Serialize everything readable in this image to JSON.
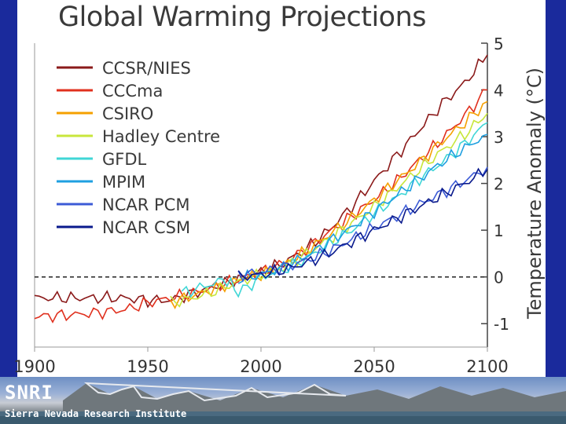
{
  "slide": {
    "title": "Global Warming Projections"
  },
  "banner": {
    "logo": "SNRI",
    "subtitle": "Sierra Nevada Research Institute"
  },
  "chart_data": {
    "type": "line",
    "title": "Global Warming Projections",
    "xlabel": "",
    "ylabel": "Temperature Anomaly (°C)",
    "xlim": [
      1900,
      2100
    ],
    "ylim": [
      -1.5,
      5
    ],
    "x_ticks": [
      1900,
      1950,
      2000,
      2050,
      2100
    ],
    "y_ticks": [
      -1,
      0,
      1,
      2,
      3,
      4,
      5
    ],
    "reference_line": 0,
    "series": [
      {
        "name": "CCSR/NIES",
        "color": "#8b1a1a",
        "points": [
          [
            1900,
            -0.45
          ],
          [
            1920,
            -0.45
          ],
          [
            1940,
            -0.45
          ],
          [
            1950,
            -0.5
          ],
          [
            1960,
            -0.5
          ],
          [
            1970,
            -0.35
          ],
          [
            1980,
            -0.2
          ],
          [
            1990,
            -0.05
          ],
          [
            2000,
            0.1
          ],
          [
            2010,
            0.3
          ],
          [
            2020,
            0.6
          ],
          [
            2030,
            1.0
          ],
          [
            2040,
            1.5
          ],
          [
            2050,
            2.05
          ],
          [
            2060,
            2.6
          ],
          [
            2070,
            3.15
          ],
          [
            2080,
            3.7
          ],
          [
            2090,
            4.15
          ],
          [
            2100,
            4.75
          ]
        ]
      },
      {
        "name": "CCCma",
        "color": "#e0301e",
        "points": [
          [
            1900,
            -0.85
          ],
          [
            1920,
            -0.8
          ],
          [
            1940,
            -0.7
          ],
          [
            1950,
            -0.55
          ],
          [
            1960,
            -0.45
          ],
          [
            1970,
            -0.35
          ],
          [
            1980,
            -0.2
          ],
          [
            1990,
            -0.05
          ],
          [
            2000,
            0.1
          ],
          [
            2010,
            0.3
          ],
          [
            2020,
            0.6
          ],
          [
            2030,
            0.95
          ],
          [
            2040,
            1.3
          ],
          [
            2050,
            1.65
          ],
          [
            2060,
            2.05
          ],
          [
            2070,
            2.5
          ],
          [
            2080,
            2.95
          ],
          [
            2090,
            3.45
          ],
          [
            2100,
            4.0
          ]
        ]
      },
      {
        "name": "CSIRO",
        "color": "#f5a000",
        "points": [
          [
            1960,
            -0.55
          ],
          [
            1970,
            -0.4
          ],
          [
            1980,
            -0.25
          ],
          [
            1990,
            -0.05
          ],
          [
            2000,
            0.05
          ],
          [
            2010,
            0.25
          ],
          [
            2020,
            0.55
          ],
          [
            2030,
            0.9
          ],
          [
            2040,
            1.25
          ],
          [
            2050,
            1.65
          ],
          [
            2060,
            2.05
          ],
          [
            2070,
            2.45
          ],
          [
            2080,
            2.9
          ],
          [
            2090,
            3.3
          ],
          [
            2100,
            3.75
          ]
        ]
      },
      {
        "name": "Hadley Centre",
        "color": "#c8e63c",
        "points": [
          [
            1960,
            -0.55
          ],
          [
            1970,
            -0.45
          ],
          [
            1980,
            -0.3
          ],
          [
            1990,
            -0.1
          ],
          [
            2000,
            0.05
          ],
          [
            2010,
            0.2
          ],
          [
            2020,
            0.5
          ],
          [
            2030,
            0.8
          ],
          [
            2040,
            1.15
          ],
          [
            2050,
            1.5
          ],
          [
            2060,
            1.9
          ],
          [
            2070,
            2.3
          ],
          [
            2080,
            2.7
          ],
          [
            2090,
            3.05
          ],
          [
            2100,
            3.5
          ]
        ]
      },
      {
        "name": "GFDL",
        "color": "#40d6d6",
        "points": [
          [
            1965,
            -0.35
          ],
          [
            1975,
            -0.2
          ],
          [
            1985,
            -0.05
          ],
          [
            1990,
            -0.35
          ],
          [
            2000,
            0.0
          ],
          [
            2010,
            0.15
          ],
          [
            2020,
            0.4
          ],
          [
            2030,
            0.7
          ],
          [
            2040,
            1.0
          ],
          [
            2050,
            1.35
          ],
          [
            2060,
            1.7
          ],
          [
            2070,
            2.1
          ],
          [
            2080,
            2.45
          ],
          [
            2090,
            2.85
          ],
          [
            2100,
            3.3
          ]
        ]
      },
      {
        "name": "MPIM",
        "color": "#1e9fe0",
        "points": [
          [
            1990,
            -0.05
          ],
          [
            2000,
            0.05
          ],
          [
            2010,
            0.2
          ],
          [
            2020,
            0.45
          ],
          [
            2030,
            0.75
          ],
          [
            2040,
            1.05
          ],
          [
            2050,
            1.4
          ],
          [
            2060,
            1.75
          ],
          [
            2070,
            2.1
          ],
          [
            2080,
            2.45
          ],
          [
            2090,
            2.75
          ],
          [
            2100,
            3.05
          ]
        ]
      },
      {
        "name": "NCAR PCM",
        "color": "#3c5bd6",
        "points": [
          [
            1990,
            0.05
          ],
          [
            2000,
            0.1
          ],
          [
            2010,
            0.2
          ],
          [
            2020,
            0.35
          ],
          [
            2030,
            0.55
          ],
          [
            2040,
            0.8
          ],
          [
            2050,
            1.05
          ],
          [
            2060,
            1.3
          ],
          [
            2070,
            1.55
          ],
          [
            2080,
            1.8
          ],
          [
            2090,
            2.05
          ],
          [
            2100,
            2.35
          ]
        ]
      },
      {
        "name": "NCAR CSM",
        "color": "#0a1a8c",
        "points": [
          [
            1990,
            0.0
          ],
          [
            2000,
            0.05
          ],
          [
            2010,
            0.15
          ],
          [
            2020,
            0.3
          ],
          [
            2030,
            0.5
          ],
          [
            2040,
            0.75
          ],
          [
            2050,
            1.0
          ],
          [
            2060,
            1.25
          ],
          [
            2070,
            1.5
          ],
          [
            2080,
            1.75
          ],
          [
            2090,
            2.0
          ],
          [
            2100,
            2.3
          ]
        ]
      }
    ]
  }
}
